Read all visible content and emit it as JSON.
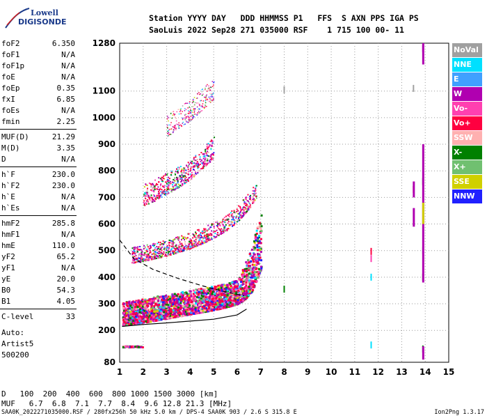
{
  "logo": {
    "line1": "Lowell",
    "line2": "DIGISONDE"
  },
  "header": {
    "labels_line": "Station YYYY DAY   DDD HHMMSS P1   FFS  S AXN PPS IGA PS",
    "values_line": "SaoLuis 2022 Sep28 271 035000 RSF    1 715 100 00- 11"
  },
  "params": [
    {
      "key": "foF2",
      "value": "6.350"
    },
    {
      "key": "foF1",
      "value": "N/A"
    },
    {
      "key": "foF1p",
      "value": "N/A"
    },
    {
      "key": "foE",
      "value": "N/A"
    },
    {
      "key": "foEp",
      "value": "0.35"
    },
    {
      "key": "fxI",
      "value": "6.85"
    },
    {
      "key": "foEs",
      "value": "N/A"
    },
    {
      "key": "fmin",
      "value": "2.25"
    },
    {
      "key": "MUF(D)",
      "value": "21.29"
    },
    {
      "key": "M(D)",
      "value": "3.35"
    },
    {
      "key": "D",
      "value": "N/A"
    },
    {
      "key": "h`F",
      "value": "230.0"
    },
    {
      "key": "h`F2",
      "value": "230.0"
    },
    {
      "key": "h`E",
      "value": "N/A"
    },
    {
      "key": "h`Es",
      "value": "N/A"
    },
    {
      "key": "hmF2",
      "value": "285.8"
    },
    {
      "key": "hmF1",
      "value": "N/A"
    },
    {
      "key": "hmE",
      "value": "110.0"
    },
    {
      "key": "yF2",
      "value": "65.2"
    },
    {
      "key": "yF1",
      "value": "N/A"
    },
    {
      "key": "yE",
      "value": "20.0"
    },
    {
      "key": "B0",
      "value": "54.3"
    },
    {
      "key": "B1",
      "value": "4.05"
    },
    {
      "key": "C-level",
      "value": "33"
    }
  ],
  "auto_block": [
    "Auto:",
    "Artist5",
    "500200"
  ],
  "legend": [
    {
      "label": "NoVal",
      "color": "#a0a0a0"
    },
    {
      "label": "NNE",
      "color": "#00e0ff"
    },
    {
      "label": "E",
      "color": "#40a0ff"
    },
    {
      "label": "W",
      "color": "#b000b0"
    },
    {
      "label": "Vo-",
      "color": "#ff40b0"
    },
    {
      "label": "Vo+",
      "color": "#ff0040"
    },
    {
      "label": "SSW",
      "color": "#ffb0b0"
    },
    {
      "label": "X-",
      "color": "#008000"
    },
    {
      "label": "X+",
      "color": "#70c070"
    },
    {
      "label": "SSE",
      "color": "#d0d000"
    },
    {
      "label": "NNW",
      "color": "#2020ff"
    }
  ],
  "bottom_table": {
    "row1_label": "D",
    "row1_values": "100  200  400  600  800 1000 1500 3000 [km]",
    "row2_label": "MUF",
    "row2_values": "6.7  6.8  7.1  7.7  8.4  9.6 12.8 21.3 [MHz]"
  },
  "footer": {
    "left": "SAA0K_2022271035000.RSF / 280fx256h 50 kHz 5.0 km / DPS-4 SAA0K 903 / 2.6 S 315.8 E",
    "right": "Ion2Png 1.3.17"
  },
  "chart_data": {
    "type": "scatter",
    "xlim": [
      1,
      15
    ],
    "ylim": [
      80,
      1280
    ],
    "x_ticks": [
      1,
      2,
      3,
      4,
      5,
      6,
      7,
      8,
      9,
      10,
      11,
      12,
      13,
      14,
      15
    ],
    "y_ticks": [
      80,
      200,
      300,
      400,
      500,
      600,
      700,
      800,
      900,
      1000,
      1100,
      1280
    ],
    "grid": true,
    "traces": [
      {
        "name": "O-trace F2",
        "points": [
          [
            1.1,
            222
          ],
          [
            1.5,
            226
          ],
          [
            2.0,
            232
          ],
          [
            2.5,
            240
          ],
          [
            3.0,
            248
          ],
          [
            3.5,
            256
          ],
          [
            4.0,
            264
          ],
          [
            4.5,
            272
          ],
          [
            5.0,
            280
          ],
          [
            5.5,
            290
          ],
          [
            6.0,
            302
          ],
          [
            6.3,
            320
          ],
          [
            6.6,
            350
          ],
          [
            6.8,
            390
          ],
          [
            7.0,
            430
          ]
        ]
      },
      {
        "name": "2nd hop",
        "points": [
          [
            1.5,
            455
          ],
          [
            2.0,
            462
          ],
          [
            2.5,
            472
          ],
          [
            3.0,
            482
          ],
          [
            3.5,
            496
          ],
          [
            4.0,
            510
          ],
          [
            4.5,
            528
          ],
          [
            5.0,
            550
          ],
          [
            5.5,
            575
          ],
          [
            6.0,
            610
          ],
          [
            6.5,
            660
          ],
          [
            6.8,
            700
          ]
        ]
      },
      {
        "name": "3rd hop",
        "points": [
          [
            2.0,
            690
          ],
          [
            2.5,
            710
          ],
          [
            3.0,
            735
          ],
          [
            3.5,
            760
          ],
          [
            4.0,
            790
          ],
          [
            4.5,
            830
          ],
          [
            5.0,
            870
          ]
        ]
      },
      {
        "name": "4th hop",
        "points": [
          [
            3.0,
            960
          ],
          [
            3.5,
            990
          ],
          [
            4.0,
            1020
          ],
          [
            4.5,
            1060
          ],
          [
            5.0,
            1100
          ]
        ]
      },
      {
        "name": "Es",
        "points": [
          [
            1.1,
            142
          ],
          [
            1.5,
            142
          ],
          [
            2.0,
            142
          ]
        ]
      }
    ],
    "profile_line": [
      [
        1.1,
        215
      ],
      [
        2.0,
        222
      ],
      [
        3.0,
        228
      ],
      [
        4.0,
        235
      ],
      [
        5.0,
        242
      ],
      [
        6.0,
        258
      ],
      [
        6.4,
        280
      ]
    ],
    "dashed_line": [
      [
        1.0,
        540
      ],
      [
        1.6,
        470
      ],
      [
        2.4,
        430
      ],
      [
        3.5,
        395
      ],
      [
        4.5,
        368
      ],
      [
        5.5,
        345
      ],
      [
        6.3,
        330
      ]
    ],
    "isolated": [
      [
        8.0,
        1105
      ],
      [
        8.0,
        355
      ],
      [
        11.7,
        497
      ],
      [
        11.7,
        470
      ],
      [
        11.7,
        400
      ],
      [
        11.7,
        145
      ],
      [
        13.5,
        1110
      ],
      [
        13.5,
        730
      ],
      [
        13.9,
        1260
      ],
      [
        13.9,
        760
      ],
      [
        13.9,
        500
      ],
      [
        13.9,
        400
      ],
      [
        13.9,
        130
      ]
    ]
  }
}
